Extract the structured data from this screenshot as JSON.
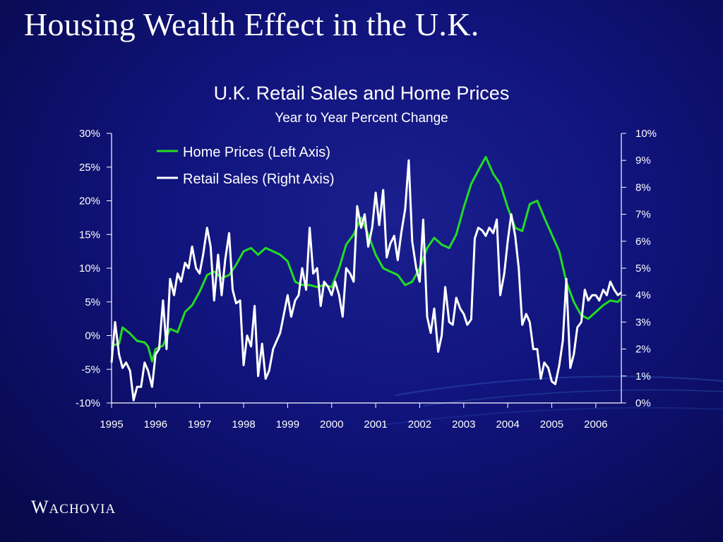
{
  "slide": {
    "title": "Housing Wealth Effect in the U.K."
  },
  "logo": {
    "first": "W",
    "rest": "ACHOVIA"
  },
  "chart_data": {
    "type": "line",
    "title": "U.K. Retail Sales and Home Prices",
    "subtitle": "Year to Year Percent Change",
    "x_range": [
      1995.0,
      2006.58
    ],
    "x_ticks": [
      "1995",
      "1996",
      "1997",
      "1998",
      "1999",
      "2000",
      "2001",
      "2002",
      "2003",
      "2004",
      "2005",
      "2006"
    ],
    "y_left": {
      "range": [
        -10,
        30
      ],
      "ticks": [
        "-10%",
        "-5%",
        "0%",
        "5%",
        "10%",
        "15%",
        "20%",
        "25%",
        "30%"
      ]
    },
    "y_right": {
      "range": [
        0,
        10
      ],
      "ticks": [
        "0%",
        "1%",
        "2%",
        "3%",
        "4%",
        "5%",
        "6%",
        "7%",
        "8%",
        "9%",
        "10%"
      ]
    },
    "legend": {
      "position": "top-left"
    },
    "colors": {
      "home_prices": "#22dd22",
      "retail_sales": "#ffffff"
    },
    "series": [
      {
        "name": "Home Prices (Left Axis)",
        "axis": "left",
        "points": [
          [
            1995.0,
            -1.5
          ],
          [
            1995.17,
            -1.2
          ],
          [
            1995.25,
            1.2
          ],
          [
            1995.42,
            0.3
          ],
          [
            1995.58,
            -0.8
          ],
          [
            1995.75,
            -1.0
          ],
          [
            1995.83,
            -1.6
          ],
          [
            1995.92,
            -3.8
          ],
          [
            1996.0,
            -2.0
          ],
          [
            1996.17,
            -1.5
          ],
          [
            1996.33,
            1.0
          ],
          [
            1996.5,
            0.5
          ],
          [
            1996.67,
            3.5
          ],
          [
            1996.83,
            4.5
          ],
          [
            1997.0,
            6.5
          ],
          [
            1997.17,
            9.0
          ],
          [
            1997.33,
            9.5
          ],
          [
            1997.5,
            8.5
          ],
          [
            1997.67,
            9.0
          ],
          [
            1997.83,
            10.5
          ],
          [
            1998.0,
            12.5
          ],
          [
            1998.17,
            13.0
          ],
          [
            1998.33,
            12.0
          ],
          [
            1998.5,
            13.0
          ],
          [
            1998.67,
            12.5
          ],
          [
            1998.83,
            12.0
          ],
          [
            1999.0,
            11.0
          ],
          [
            1999.17,
            8.0
          ],
          [
            1999.33,
            7.5
          ],
          [
            1999.5,
            7.5
          ],
          [
            1999.67,
            7.2
          ],
          [
            1999.83,
            7.5
          ],
          [
            2000.0,
            7.2
          ],
          [
            2000.17,
            10.0
          ],
          [
            2000.33,
            13.5
          ],
          [
            2000.5,
            15.0
          ],
          [
            2000.67,
            17.5
          ],
          [
            2000.83,
            15.0
          ],
          [
            2001.0,
            12.0
          ],
          [
            2001.17,
            10.0
          ],
          [
            2001.33,
            9.5
          ],
          [
            2001.5,
            9.0
          ],
          [
            2001.67,
            7.5
          ],
          [
            2001.83,
            8.0
          ],
          [
            2002.0,
            10.0
          ],
          [
            2002.17,
            13.0
          ],
          [
            2002.33,
            14.5
          ],
          [
            2002.5,
            13.5
          ],
          [
            2002.67,
            13.0
          ],
          [
            2002.83,
            15.0
          ],
          [
            2003.0,
            19.0
          ],
          [
            2003.17,
            22.5
          ],
          [
            2003.33,
            24.5
          ],
          [
            2003.5,
            26.5
          ],
          [
            2003.67,
            24.0
          ],
          [
            2003.83,
            22.5
          ],
          [
            2004.0,
            19.0
          ],
          [
            2004.17,
            16.0
          ],
          [
            2004.33,
            15.5
          ],
          [
            2004.5,
            19.5
          ],
          [
            2004.67,
            20.0
          ],
          [
            2004.83,
            17.5
          ],
          [
            2005.0,
            15.0
          ],
          [
            2005.17,
            12.5
          ],
          [
            2005.33,
            8.0
          ],
          [
            2005.5,
            5.0
          ],
          [
            2005.67,
            3.0
          ],
          [
            2005.83,
            2.5
          ],
          [
            2006.0,
            3.5
          ],
          [
            2006.17,
            4.5
          ],
          [
            2006.33,
            5.2
          ],
          [
            2006.5,
            5.0
          ],
          [
            2006.58,
            5.5
          ]
        ]
      },
      {
        "name": "Retail Sales (Right Axis)",
        "axis": "right",
        "points": [
          [
            1995.0,
            1.5
          ],
          [
            1995.08,
            3.0
          ],
          [
            1995.17,
            1.8
          ],
          [
            1995.25,
            1.3
          ],
          [
            1995.33,
            1.5
          ],
          [
            1995.42,
            1.2
          ],
          [
            1995.5,
            0.1
          ],
          [
            1995.58,
            0.6
          ],
          [
            1995.67,
            0.6
          ],
          [
            1995.75,
            1.5
          ],
          [
            1995.83,
            1.2
          ],
          [
            1995.92,
            0.6
          ],
          [
            1996.0,
            1.8
          ],
          [
            1996.08,
            2.0
          ],
          [
            1996.17,
            3.8
          ],
          [
            1996.25,
            2.0
          ],
          [
            1996.33,
            4.6
          ],
          [
            1996.42,
            4.0
          ],
          [
            1996.5,
            4.8
          ],
          [
            1996.58,
            4.5
          ],
          [
            1996.67,
            5.2
          ],
          [
            1996.75,
            5.0
          ],
          [
            1996.83,
            5.8
          ],
          [
            1996.92,
            5.0
          ],
          [
            1997.0,
            4.8
          ],
          [
            1997.08,
            5.5
          ],
          [
            1997.17,
            6.5
          ],
          [
            1997.25,
            5.8
          ],
          [
            1997.33,
            3.8
          ],
          [
            1997.42,
            5.5
          ],
          [
            1997.5,
            4.0
          ],
          [
            1997.58,
            5.3
          ],
          [
            1997.67,
            6.3
          ],
          [
            1997.75,
            4.2
          ],
          [
            1997.83,
            3.7
          ],
          [
            1997.92,
            3.8
          ],
          [
            1998.0,
            1.4
          ],
          [
            1998.08,
            2.5
          ],
          [
            1998.17,
            2.1
          ],
          [
            1998.25,
            3.6
          ],
          [
            1998.33,
            1.0
          ],
          [
            1998.42,
            2.2
          ],
          [
            1998.5,
            0.9
          ],
          [
            1998.58,
            1.2
          ],
          [
            1998.67,
            2.0
          ],
          [
            1998.75,
            2.3
          ],
          [
            1998.83,
            2.6
          ],
          [
            1999.0,
            4.0
          ],
          [
            1999.08,
            3.2
          ],
          [
            1999.17,
            3.8
          ],
          [
            1999.25,
            4.0
          ],
          [
            1999.33,
            5.0
          ],
          [
            1999.42,
            4.2
          ],
          [
            1999.5,
            6.5
          ],
          [
            1999.58,
            4.8
          ],
          [
            1999.67,
            5.0
          ],
          [
            1999.75,
            3.6
          ],
          [
            1999.83,
            4.5
          ],
          [
            1999.92,
            4.3
          ],
          [
            2000.0,
            4.0
          ],
          [
            2000.08,
            4.5
          ],
          [
            2000.17,
            4.0
          ],
          [
            2000.25,
            3.2
          ],
          [
            2000.33,
            5.0
          ],
          [
            2000.42,
            4.8
          ],
          [
            2000.5,
            4.5
          ],
          [
            2000.58,
            7.3
          ],
          [
            2000.67,
            6.5
          ],
          [
            2000.75,
            7.0
          ],
          [
            2000.83,
            5.8
          ],
          [
            2000.92,
            6.5
          ],
          [
            2001.0,
            7.8
          ],
          [
            2001.08,
            6.6
          ],
          [
            2001.17,
            7.9
          ],
          [
            2001.25,
            5.4
          ],
          [
            2001.33,
            5.9
          ],
          [
            2001.42,
            6.2
          ],
          [
            2001.5,
            5.3
          ],
          [
            2001.58,
            6.3
          ],
          [
            2001.67,
            7.2
          ],
          [
            2001.75,
            9.0
          ],
          [
            2001.83,
            6.0
          ],
          [
            2001.92,
            5.0
          ],
          [
            2002.0,
            4.5
          ],
          [
            2002.08,
            6.8
          ],
          [
            2002.17,
            3.2
          ],
          [
            2002.25,
            2.6
          ],
          [
            2002.33,
            3.5
          ],
          [
            2002.42,
            1.9
          ],
          [
            2002.5,
            2.5
          ],
          [
            2002.58,
            4.3
          ],
          [
            2002.67,
            3.0
          ],
          [
            2002.75,
            2.9
          ],
          [
            2002.83,
            3.9
          ],
          [
            2002.92,
            3.5
          ],
          [
            2003.0,
            3.3
          ],
          [
            2003.08,
            2.9
          ],
          [
            2003.17,
            3.1
          ],
          [
            2003.25,
            6.1
          ],
          [
            2003.33,
            6.5
          ],
          [
            2003.42,
            6.4
          ],
          [
            2003.5,
            6.2
          ],
          [
            2003.58,
            6.5
          ],
          [
            2003.67,
            6.3
          ],
          [
            2003.75,
            6.8
          ],
          [
            2003.83,
            4.0
          ],
          [
            2003.92,
            4.8
          ],
          [
            2004.0,
            6.0
          ],
          [
            2004.08,
            7.0
          ],
          [
            2004.17,
            6.2
          ],
          [
            2004.25,
            5.0
          ],
          [
            2004.33,
            2.9
          ],
          [
            2004.42,
            3.3
          ],
          [
            2004.5,
            3.0
          ],
          [
            2004.58,
            2.0
          ],
          [
            2004.67,
            2.0
          ],
          [
            2004.75,
            0.9
          ],
          [
            2004.83,
            1.5
          ],
          [
            2004.92,
            1.3
          ],
          [
            2005.0,
            0.8
          ],
          [
            2005.08,
            0.7
          ],
          [
            2005.17,
            1.4
          ],
          [
            2005.25,
            2.3
          ],
          [
            2005.33,
            4.6
          ],
          [
            2005.42,
            1.3
          ],
          [
            2005.5,
            1.8
          ],
          [
            2005.58,
            2.8
          ],
          [
            2005.67,
            3.0
          ],
          [
            2005.75,
            4.2
          ],
          [
            2005.83,
            3.8
          ],
          [
            2005.92,
            4.0
          ],
          [
            2006.0,
            4.0
          ],
          [
            2006.08,
            3.8
          ],
          [
            2006.17,
            4.2
          ],
          [
            2006.25,
            4.0
          ],
          [
            2006.33,
            4.5
          ],
          [
            2006.42,
            4.2
          ],
          [
            2006.5,
            4.0
          ],
          [
            2006.58,
            4.1
          ]
        ]
      }
    ]
  }
}
